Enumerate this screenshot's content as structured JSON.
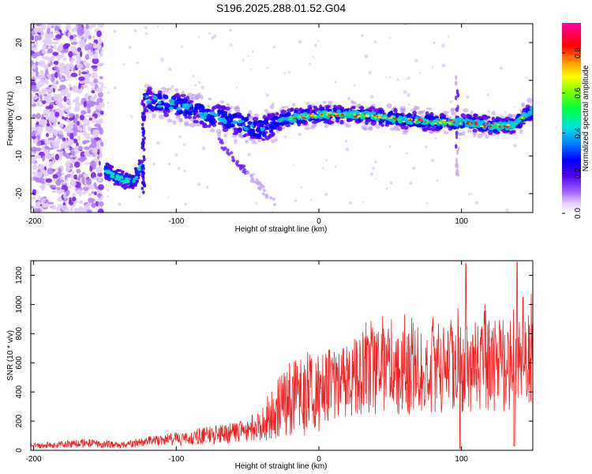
{
  "title": "S196.2025.288.01.52.G04",
  "chart_data": [
    {
      "type": "heatmap",
      "name": "spectrogram",
      "xlabel": "Height of straight line (km)",
      "ylabel": "Frequency (Hz)",
      "xlim": [
        -202,
        150
      ],
      "ylim": [
        -25,
        25
      ],
      "xticks": [
        -200,
        -100,
        0,
        100
      ],
      "yticks": [
        -20,
        -10,
        0,
        10,
        20
      ],
      "colorbar": {
        "label": "Normalized spectral amplitude",
        "ticks": [
          "0.0",
          "0.2",
          "0.4",
          "0.6",
          "0.8"
        ],
        "range": [
          0,
          0.95
        ]
      },
      "ridge": [
        {
          "x": -122,
          "y": 5
        },
        {
          "x": -110,
          "y": 4
        },
        {
          "x": -95,
          "y": 3
        },
        {
          "x": -80,
          "y": 1
        },
        {
          "x": -60,
          "y": -1
        },
        {
          "x": -40,
          "y": -3
        },
        {
          "x": -30,
          "y": -1
        },
        {
          "x": -20,
          "y": 0
        },
        {
          "x": 0,
          "y": 1
        },
        {
          "x": 20,
          "y": 1
        },
        {
          "x": 40,
          "y": 0.5
        },
        {
          "x": 60,
          "y": -0.5
        },
        {
          "x": 80,
          "y": -1
        },
        {
          "x": 100,
          "y": -1
        },
        {
          "x": 120,
          "y": -2
        },
        {
          "x": 135,
          "y": -2
        },
        {
          "x": 150,
          "y": 2
        }
      ],
      "low_feature": [
        {
          "x": -150,
          "y": -14
        },
        {
          "x": -140,
          "y": -16
        },
        {
          "x": -130,
          "y": -17
        },
        {
          "x": -124,
          "y": -12
        }
      ]
    },
    {
      "type": "line",
      "name": "snr",
      "xlabel": "Height of straight line (km)",
      "ylabel": "SNR (10 * v/v)",
      "xlim": [
        -202,
        150
      ],
      "ylim": [
        0,
        1300
      ],
      "xticks": [
        -200,
        -100,
        0,
        100
      ],
      "yticks": [
        0,
        200,
        400,
        600,
        800,
        1000,
        1200
      ],
      "color": "#ee2222",
      "envelope": [
        {
          "x": -202,
          "y": 30
        },
        {
          "x": -160,
          "y": 50
        },
        {
          "x": -140,
          "y": 35
        },
        {
          "x": -120,
          "y": 60
        },
        {
          "x": -100,
          "y": 80
        },
        {
          "x": -80,
          "y": 100
        },
        {
          "x": -60,
          "y": 120
        },
        {
          "x": -40,
          "y": 170
        },
        {
          "x": -30,
          "y": 280
        },
        {
          "x": -20,
          "y": 350
        },
        {
          "x": -10,
          "y": 380
        },
        {
          "x": 0,
          "y": 420
        },
        {
          "x": 20,
          "y": 500
        },
        {
          "x": 40,
          "y": 540
        },
        {
          "x": 60,
          "y": 540
        },
        {
          "x": 80,
          "y": 550
        },
        {
          "x": 100,
          "y": 560
        },
        {
          "x": 120,
          "y": 580
        },
        {
          "x": 140,
          "y": 600
        },
        {
          "x": 150,
          "y": 620
        }
      ],
      "peaks": [
        {
          "x": 99,
          "y": 1100
        },
        {
          "x": 103,
          "y": 1280
        },
        {
          "x": 139,
          "y": 1290
        },
        {
          "x": 143,
          "y": 1050
        }
      ],
      "dips": [
        {
          "x": 99,
          "y": 10
        },
        {
          "x": 137,
          "y": 30
        }
      ]
    }
  ]
}
